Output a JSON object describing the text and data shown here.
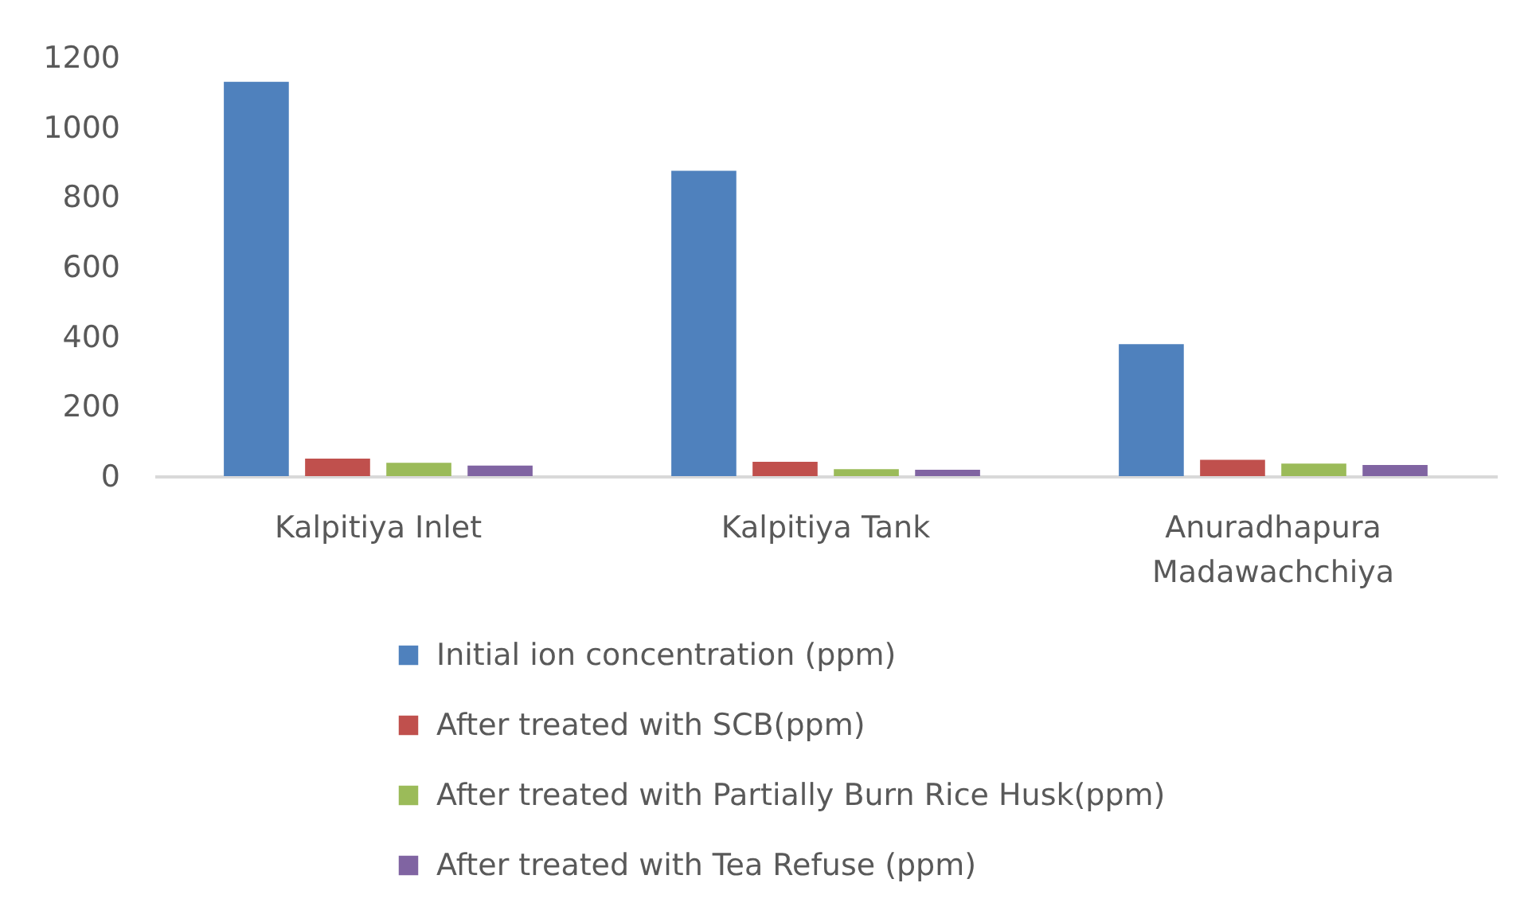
{
  "chart_data": {
    "type": "bar",
    "categories": [
      "Kalpitiya Inlet",
      "Kalpitiya Tank",
      "Anuradhapura Madawachchiya"
    ],
    "series": [
      {
        "name": "Initial ion concentration (ppm)",
        "color": "#4f81bd",
        "values": [
          1130,
          875,
          378
        ]
      },
      {
        "name": "After treated with SCB(ppm)",
        "color": "#c0504d",
        "values": [
          50,
          41,
          47
        ]
      },
      {
        "name": "After treated with Partially Burn Rice Husk(ppm)",
        "color": "#9bbb59",
        "values": [
          38,
          20,
          36
        ]
      },
      {
        "name": "After treated with Tea Refuse (ppm)",
        "color": "#8064a2",
        "values": [
          30,
          18,
          32
        ]
      }
    ],
    "ylim": [
      0,
      1200
    ],
    "yticks": [
      0,
      200,
      400,
      600,
      800,
      1000,
      1200
    ],
    "grid": false,
    "legend": "bottom"
  }
}
